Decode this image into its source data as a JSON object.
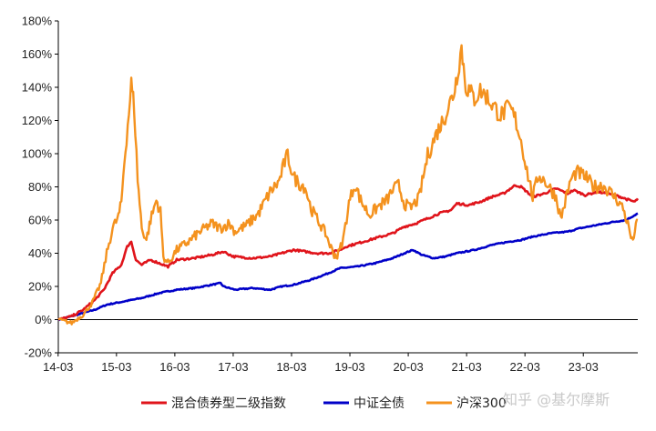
{
  "watermark": "知乎 @基尔摩斯",
  "chart_data": {
    "type": "line",
    "x_ticks": [
      "14-03",
      "15-03",
      "16-03",
      "17-03",
      "18-03",
      "19-03",
      "20-03",
      "21-03",
      "22-03",
      "23-03"
    ],
    "x_range": [
      2014.17,
      2024.1
    ],
    "ylim": [
      -20,
      180
    ],
    "y_ticks": [
      -20,
      0,
      20,
      40,
      60,
      80,
      100,
      120,
      140,
      160,
      180
    ],
    "y_tick_labels": [
      "-20%",
      "0%",
      "20%",
      "40%",
      "60%",
      "80%",
      "100%",
      "120%",
      "140%",
      "160%",
      "180%"
    ],
    "grid": false,
    "legend_position": "bottom",
    "series": [
      {
        "name": "混合债券型二级指数",
        "color": "#e0141b",
        "points": [
          [
            2014.17,
            0
          ],
          [
            2014.4,
            2
          ],
          [
            2014.6,
            6
          ],
          [
            2014.8,
            12
          ],
          [
            2014.95,
            18
          ],
          [
            2015.1,
            28
          ],
          [
            2015.25,
            33
          ],
          [
            2015.35,
            44
          ],
          [
            2015.42,
            47
          ],
          [
            2015.5,
            36
          ],
          [
            2015.6,
            33
          ],
          [
            2015.75,
            36
          ],
          [
            2015.9,
            34
          ],
          [
            2016.05,
            32
          ],
          [
            2016.2,
            36
          ],
          [
            2016.5,
            37
          ],
          [
            2016.8,
            39
          ],
          [
            2017.0,
            41
          ],
          [
            2017.17,
            38
          ],
          [
            2017.5,
            37
          ],
          [
            2017.8,
            38
          ],
          [
            2018.0,
            40
          ],
          [
            2018.2,
            42
          ],
          [
            2018.4,
            41
          ],
          [
            2018.6,
            40
          ],
          [
            2018.8,
            40
          ],
          [
            2019.0,
            42
          ],
          [
            2019.1,
            44
          ],
          [
            2019.3,
            46
          ],
          [
            2019.6,
            49
          ],
          [
            2019.9,
            52
          ],
          [
            2020.1,
            56
          ],
          [
            2020.3,
            58
          ],
          [
            2020.5,
            61
          ],
          [
            2020.7,
            64
          ],
          [
            2020.9,
            66
          ],
          [
            2021.0,
            70
          ],
          [
            2021.2,
            69
          ],
          [
            2021.4,
            71
          ],
          [
            2021.6,
            74
          ],
          [
            2021.8,
            76
          ],
          [
            2022.0,
            81
          ],
          [
            2022.1,
            80
          ],
          [
            2022.3,
            74
          ],
          [
            2022.5,
            76
          ],
          [
            2022.7,
            79
          ],
          [
            2022.9,
            76
          ],
          [
            2023.0,
            78
          ],
          [
            2023.2,
            75
          ],
          [
            2023.4,
            77
          ],
          [
            2023.6,
            76
          ],
          [
            2023.8,
            74
          ],
          [
            2023.95,
            72
          ],
          [
            2024.05,
            71
          ],
          [
            2024.1,
            73
          ]
        ]
      },
      {
        "name": "中证全债",
        "color": "#0000c8",
        "points": [
          [
            2014.17,
            0
          ],
          [
            2014.5,
            3
          ],
          [
            2014.8,
            6
          ],
          [
            2015.0,
            9
          ],
          [
            2015.3,
            11
          ],
          [
            2015.6,
            13
          ],
          [
            2015.9,
            16
          ],
          [
            2016.2,
            18
          ],
          [
            2016.5,
            19
          ],
          [
            2016.8,
            21
          ],
          [
            2016.95,
            22
          ],
          [
            2017.0,
            20
          ],
          [
            2017.2,
            18
          ],
          [
            2017.5,
            19
          ],
          [
            2017.8,
            18
          ],
          [
            2018.0,
            20
          ],
          [
            2018.2,
            21
          ],
          [
            2018.5,
            24
          ],
          [
            2018.8,
            28
          ],
          [
            2019.0,
            31
          ],
          [
            2019.3,
            32
          ],
          [
            2019.6,
            34
          ],
          [
            2019.9,
            37
          ],
          [
            2020.1,
            40
          ],
          [
            2020.25,
            42
          ],
          [
            2020.4,
            39
          ],
          [
            2020.6,
            37
          ],
          [
            2020.8,
            38
          ],
          [
            2021.0,
            40
          ],
          [
            2021.3,
            42
          ],
          [
            2021.6,
            45
          ],
          [
            2021.9,
            47
          ],
          [
            2022.1,
            48
          ],
          [
            2022.3,
            50
          ],
          [
            2022.6,
            52
          ],
          [
            2022.9,
            53
          ],
          [
            2023.1,
            55
          ],
          [
            2023.4,
            57
          ],
          [
            2023.7,
            59
          ],
          [
            2023.9,
            60
          ],
          [
            2024.0,
            62
          ],
          [
            2024.1,
            64
          ]
        ]
      },
      {
        "name": "沪深300",
        "color": "#f4921e",
        "points": [
          [
            2014.17,
            0
          ],
          [
            2014.4,
            -2
          ],
          [
            2014.6,
            3
          ],
          [
            2014.75,
            10
          ],
          [
            2014.9,
            22
          ],
          [
            2015.0,
            40
          ],
          [
            2015.1,
            55
          ],
          [
            2015.2,
            62
          ],
          [
            2015.25,
            70
          ],
          [
            2015.3,
            95
          ],
          [
            2015.38,
            125
          ],
          [
            2015.42,
            142
          ],
          [
            2015.47,
            128
          ],
          [
            2015.53,
            85
          ],
          [
            2015.6,
            55
          ],
          [
            2015.68,
            48
          ],
          [
            2015.75,
            60
          ],
          [
            2015.85,
            72
          ],
          [
            2015.92,
            65
          ],
          [
            2015.97,
            38
          ],
          [
            2016.05,
            34
          ],
          [
            2016.2,
            42
          ],
          [
            2016.4,
            47
          ],
          [
            2016.6,
            53
          ],
          [
            2016.8,
            58
          ],
          [
            2016.95,
            55
          ],
          [
            2017.1,
            58
          ],
          [
            2017.2,
            53
          ],
          [
            2017.4,
            57
          ],
          [
            2017.6,
            64
          ],
          [
            2017.8,
            77
          ],
          [
            2017.95,
            83
          ],
          [
            2018.05,
            95
          ],
          [
            2018.1,
            99
          ],
          [
            2018.2,
            86
          ],
          [
            2018.3,
            82
          ],
          [
            2018.4,
            80
          ],
          [
            2018.5,
            67
          ],
          [
            2018.6,
            61
          ],
          [
            2018.75,
            52
          ],
          [
            2018.88,
            40
          ],
          [
            2018.95,
            38
          ],
          [
            2019.05,
            48
          ],
          [
            2019.15,
            70
          ],
          [
            2019.25,
            82
          ],
          [
            2019.35,
            72
          ],
          [
            2019.5,
            63
          ],
          [
            2019.65,
            68
          ],
          [
            2019.8,
            72
          ],
          [
            2019.9,
            78
          ],
          [
            2020.0,
            81
          ],
          [
            2020.1,
            70
          ],
          [
            2020.2,
            67
          ],
          [
            2020.35,
            73
          ],
          [
            2020.5,
            99
          ],
          [
            2020.65,
            112
          ],
          [
            2020.8,
            123
          ],
          [
            2020.95,
            137
          ],
          [
            2021.0,
            147
          ],
          [
            2021.08,
            164
          ],
          [
            2021.15,
            141
          ],
          [
            2021.3,
            133
          ],
          [
            2021.4,
            138
          ],
          [
            2021.5,
            135
          ],
          [
            2021.6,
            130
          ],
          [
            2021.75,
            123
          ],
          [
            2021.9,
            128
          ],
          [
            2022.0,
            121
          ],
          [
            2022.1,
            108
          ],
          [
            2022.2,
            90
          ],
          [
            2022.3,
            74
          ],
          [
            2022.4,
            87
          ],
          [
            2022.5,
            84
          ],
          [
            2022.6,
            79
          ],
          [
            2022.7,
            74
          ],
          [
            2022.78,
            61
          ],
          [
            2022.85,
            70
          ],
          [
            2022.95,
            84
          ],
          [
            2023.05,
            89
          ],
          [
            2023.2,
            86
          ],
          [
            2023.35,
            80
          ],
          [
            2023.5,
            81
          ],
          [
            2023.65,
            76
          ],
          [
            2023.75,
            72
          ],
          [
            2023.85,
            67
          ],
          [
            2023.95,
            55
          ],
          [
            2024.0,
            47
          ],
          [
            2024.05,
            53
          ],
          [
            2024.1,
            60
          ]
        ]
      }
    ]
  }
}
